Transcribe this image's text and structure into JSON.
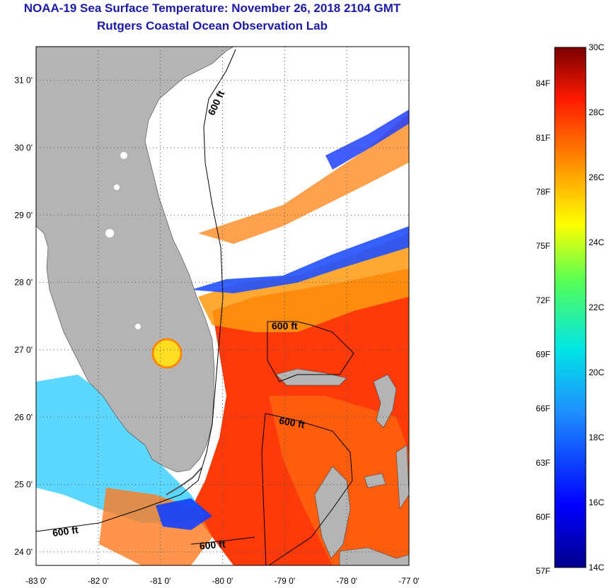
{
  "header": {
    "title": "NOAA-19 Sea Surface Temperature:  November 26, 2018 2104 GMT",
    "subtitle": "Rutgers Coastal Ocean Observation Lab"
  },
  "axes": {
    "lon_ticks": [
      "-83 0'",
      "-82 0'",
      "-81 0'",
      "-80 0'",
      "-79 0'",
      "-78 0'",
      "-77 0'"
    ],
    "lat_ticks": [
      "31 0'",
      "30 0'",
      "29 0'",
      "28 0'",
      "27 0'",
      "26 0'",
      "25 0'",
      "24 0'"
    ],
    "lon_range": [
      -83,
      -77
    ],
    "lat_range": [
      23.8,
      31.5
    ]
  },
  "contours": {
    "label": "600 ft",
    "labels": [
      "600 ft",
      "600 ft",
      "600 ft",
      "600 ft",
      "600 ft"
    ]
  },
  "colorbar": {
    "celsius": [
      "30C",
      "28C",
      "26C",
      "24C",
      "22C",
      "20C",
      "18C",
      "16C",
      "14C"
    ],
    "fahrenheit": [
      "84F",
      "81F",
      "78F",
      "75F",
      "72F",
      "69F",
      "66F",
      "63F",
      "60F",
      "57F"
    ],
    "c_range": [
      14,
      30
    ]
  },
  "colors": {
    "land": "#b4b4b4",
    "cloud": "#ffffff",
    "title": "#1a1aa6"
  }
}
